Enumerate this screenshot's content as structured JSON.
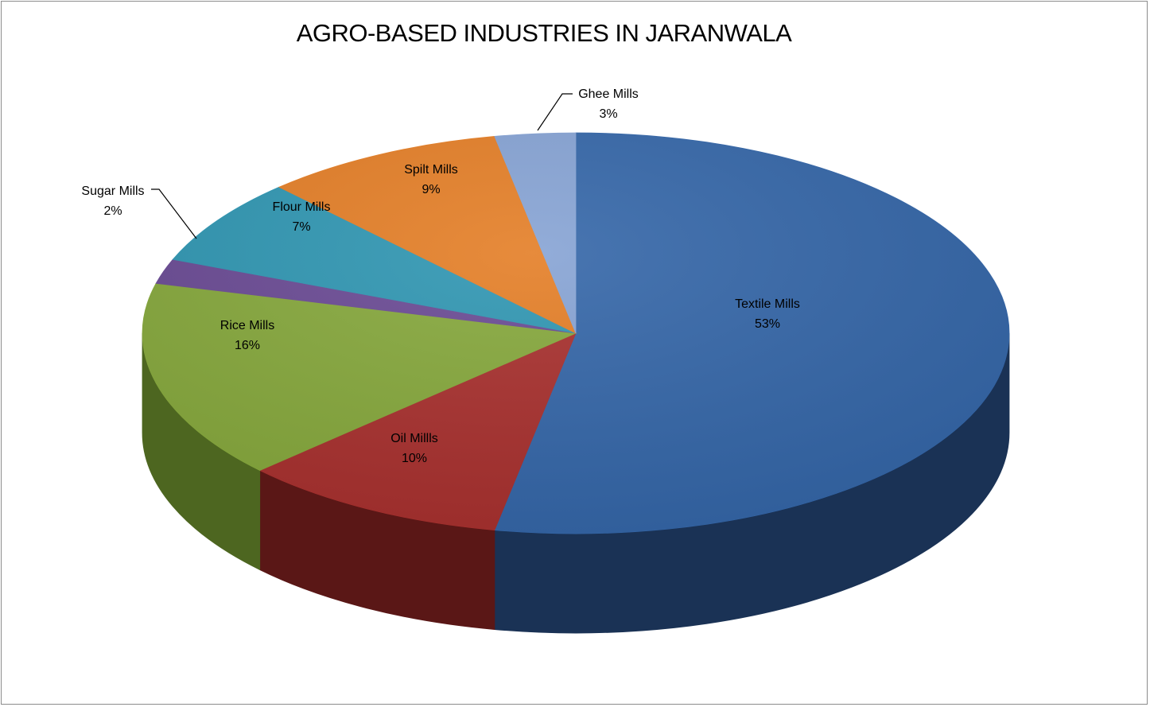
{
  "chart_data": {
    "type": "pie",
    "title": "AGRO-BASED INDUSTRIES IN JARANWALA",
    "slices": [
      {
        "label": "Textile Mills",
        "value": 53,
        "value_label": "53%",
        "color": "#3466A8",
        "dark": "#1A3255"
      },
      {
        "label": "Oil Millls",
        "value": 10,
        "value_label": "10%",
        "color": "#A8302E",
        "dark": "#5A1716"
      },
      {
        "label": "Rice Mills",
        "value": 16,
        "value_label": "16%",
        "color": "#86A83C",
        "dark": "#4D6620"
      },
      {
        "label": "Sugar Mills",
        "value": 2,
        "value_label": "2%",
        "color": "#6A4A94",
        "dark": "#3C2856"
      },
      {
        "label": "Flour Mills",
        "value": 7,
        "value_label": "7%",
        "color": "#2F96B2",
        "dark": "#175766"
      },
      {
        "label": "Spilt Mills",
        "value": 9,
        "value_label": "9%",
        "color": "#E47E26",
        "dark": "#8A4A12"
      },
      {
        "label": "Ghee Mills",
        "value": 3,
        "value_label": "3%",
        "color": "#86A3D4",
        "dark": "#4A6290"
      }
    ],
    "start_angle_deg": 0,
    "direction": "clockwise",
    "legend": "none",
    "data_labels": "category name and percentage"
  }
}
